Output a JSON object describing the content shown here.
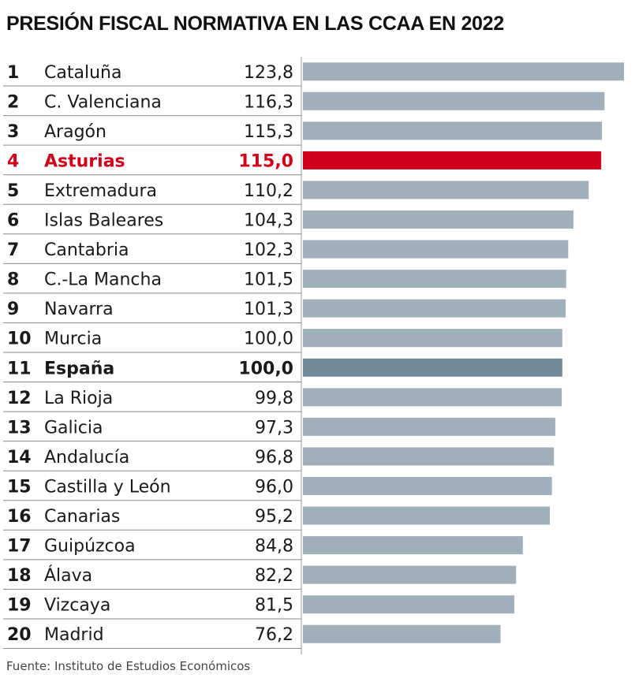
{
  "title": "PRESIÓN FISCAL NORMATIVA EN LAS CCAA EN 2022",
  "source": "Fuente: Instituto de Estudios Económicos",
  "colors": {
    "bar": "#9fb0bb",
    "bar_highlight": "#d0001b",
    "bar_reference": "#728896",
    "text": "#1a1a1a",
    "text_highlight": "#d0001b",
    "divider": "#8a8a8a"
  },
  "chart_data": {
    "type": "bar",
    "orientation": "horizontal",
    "title": "PRESIÓN FISCAL NORMATIVA EN LAS CCAA EN 2022",
    "xlabel": "",
    "ylabel": "",
    "xlim": [
      0,
      123.8
    ],
    "rows": [
      {
        "rank": "1",
        "region": "Cataluña",
        "value": 123.8,
        "label": "123,8",
        "style": "normal"
      },
      {
        "rank": "2",
        "region": "C. Valenciana",
        "value": 116.3,
        "label": "116,3",
        "style": "normal"
      },
      {
        "rank": "3",
        "region": "Aragón",
        "value": 115.3,
        "label": "115,3",
        "style": "normal"
      },
      {
        "rank": "4",
        "region": "Asturias",
        "value": 115.0,
        "label": "115,0",
        "style": "highlight"
      },
      {
        "rank": "5",
        "region": "Extremadura",
        "value": 110.2,
        "label": "110,2",
        "style": "normal"
      },
      {
        "rank": "6",
        "region": "Islas Baleares",
        "value": 104.3,
        "label": "104,3",
        "style": "normal"
      },
      {
        "rank": "7",
        "region": "Cantabria",
        "value": 102.3,
        "label": "102,3",
        "style": "normal"
      },
      {
        "rank": "8",
        "region": "C.-La Mancha",
        "value": 101.5,
        "label": "101,5",
        "style": "normal"
      },
      {
        "rank": "9",
        "region": "Navarra",
        "value": 101.3,
        "label": "101,3",
        "style": "normal"
      },
      {
        "rank": "10",
        "region": "Murcia",
        "value": 100.0,
        "label": "100,0",
        "style": "normal"
      },
      {
        "rank": "11",
        "region": "España",
        "value": 100.0,
        "label": "100,0",
        "style": "reference"
      },
      {
        "rank": "12",
        "region": "La Rioja",
        "value": 99.8,
        "label": "99,8",
        "style": "normal"
      },
      {
        "rank": "13",
        "region": "Galicia",
        "value": 97.3,
        "label": "97,3",
        "style": "normal"
      },
      {
        "rank": "14",
        "region": "Andalucía",
        "value": 96.8,
        "label": "96,8",
        "style": "normal"
      },
      {
        "rank": "15",
        "region": "Castilla y León",
        "value": 96.0,
        "label": "96,0",
        "style": "normal"
      },
      {
        "rank": "16",
        "region": "Canarias",
        "value": 95.2,
        "label": "95,2",
        "style": "normal"
      },
      {
        "rank": "17",
        "region": "Guipúzcoa",
        "value": 84.8,
        "label": "84,8",
        "style": "normal"
      },
      {
        "rank": "18",
        "region": "Álava",
        "value": 82.2,
        "label": "82,2",
        "style": "normal"
      },
      {
        "rank": "19",
        "region": "Vizcaya",
        "value": 81.5,
        "label": "81,5",
        "style": "normal"
      },
      {
        "rank": "20",
        "region": "Madrid",
        "value": 76.2,
        "label": "76,2",
        "style": "normal"
      }
    ]
  }
}
